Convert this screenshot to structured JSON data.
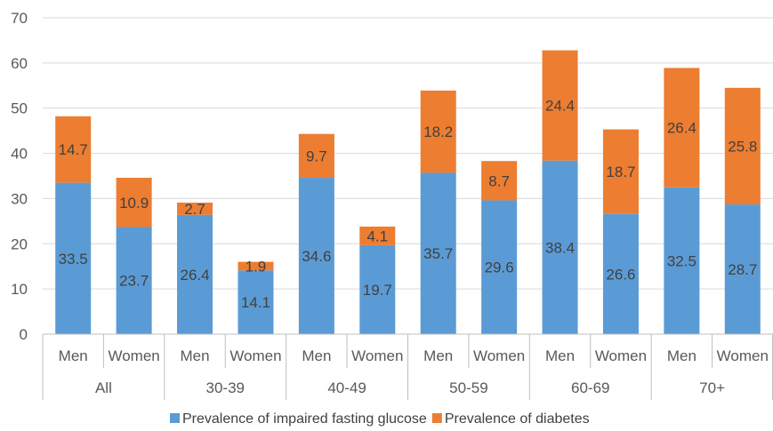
{
  "chart_data": {
    "type": "bar",
    "stacked": true,
    "groups": [
      {
        "label": "All",
        "categories": [
          "Men",
          "Women"
        ]
      },
      {
        "label": "30-39",
        "categories": [
          "Men",
          "Women"
        ]
      },
      {
        "label": "40-49",
        "categories": [
          "Men",
          "Women"
        ]
      },
      {
        "label": "50-59",
        "categories": [
          "Men",
          "Women"
        ]
      },
      {
        "label": "60-69",
        "categories": [
          "Men",
          "Women"
        ]
      },
      {
        "label": "70+",
        "categories": [
          "Men",
          "Women"
        ]
      }
    ],
    "series": [
      {
        "name": "Prevalence of impaired fasting glucose",
        "color": "#5b9bd5",
        "values": [
          33.5,
          23.7,
          26.4,
          14.1,
          34.6,
          19.7,
          35.7,
          29.6,
          38.4,
          26.6,
          32.5,
          28.7
        ]
      },
      {
        "name": "Prevalence of diabetes",
        "color": "#ed7d31",
        "values": [
          14.7,
          10.9,
          2.7,
          1.9,
          9.7,
          4.1,
          18.2,
          8.7,
          24.4,
          18.7,
          26.4,
          25.8
        ]
      }
    ],
    "ylim": [
      0,
      70
    ],
    "yticks": [
      0,
      10,
      20,
      30,
      40,
      50,
      60,
      70
    ],
    "grid": true,
    "legend_position": "bottom"
  }
}
